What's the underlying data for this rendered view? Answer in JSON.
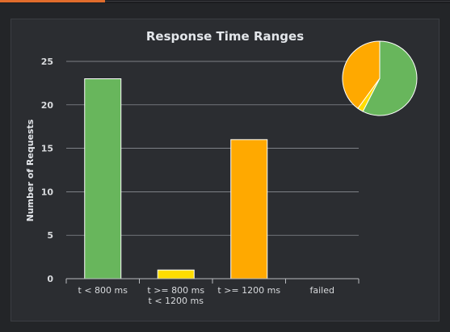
{
  "chart_data": {
    "type": "bar",
    "title": "Response Time Ranges",
    "ylabel": "Number of Requests",
    "xlabel": "",
    "ylim": [
      0,
      25
    ],
    "yticks": [
      0,
      5,
      10,
      15,
      20,
      25
    ],
    "grid": true,
    "categories": [
      [
        "t < 800 ms"
      ],
      [
        "t >= 800 ms",
        "t < 1200 ms"
      ],
      [
        "t >= 1200 ms"
      ],
      [
        "failed"
      ]
    ],
    "values": [
      23,
      1,
      16,
      0
    ],
    "colors": [
      "#68b65c",
      "#ffdd00",
      "#ffa900",
      "#f15b4f"
    ],
    "inset_pie": {
      "type": "pie",
      "values": [
        23,
        1,
        16,
        0
      ],
      "colors": [
        "#68b65c",
        "#ffdd00",
        "#ffa900",
        "#f15b4f"
      ]
    }
  }
}
